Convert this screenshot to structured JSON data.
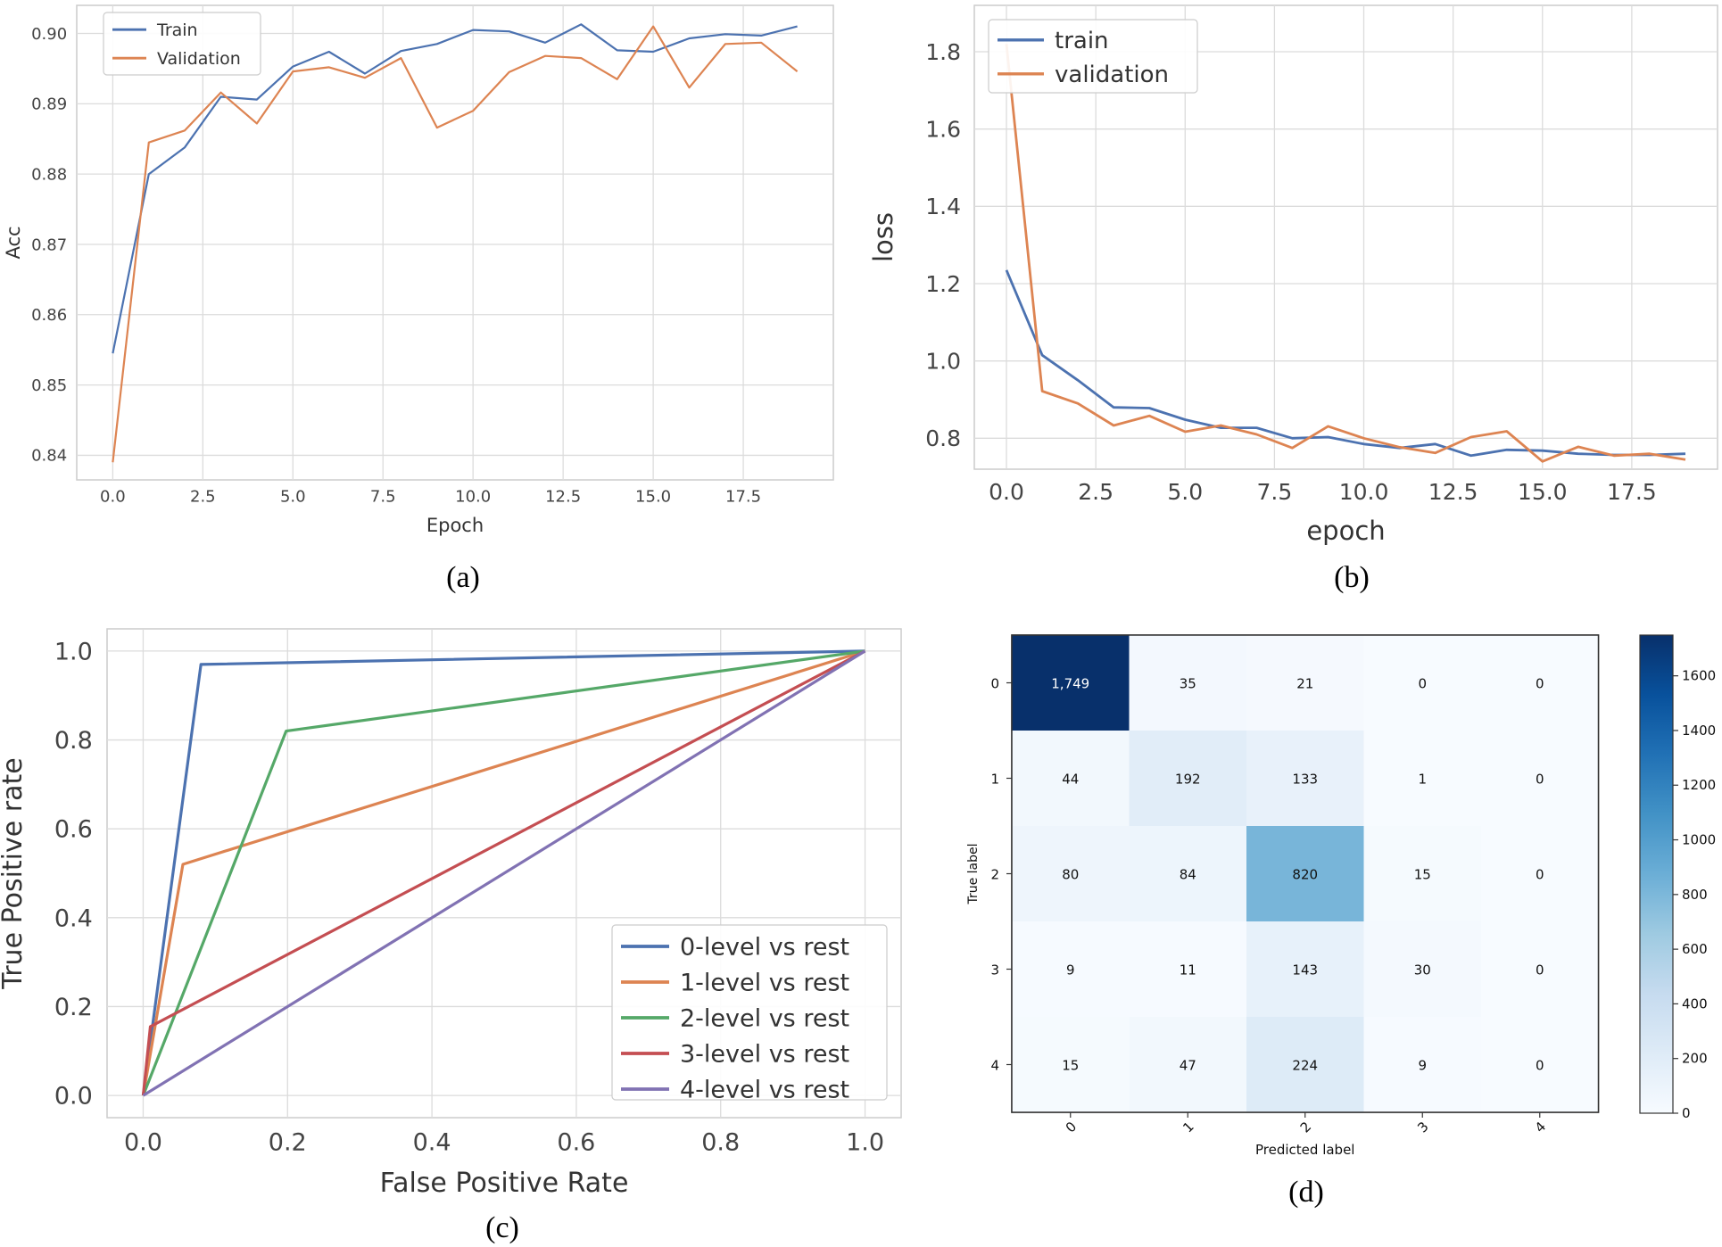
{
  "captions": {
    "a": "(a)",
    "b": "(b)",
    "c": "(c)",
    "d": "(d)"
  },
  "colors": {
    "blue": "#4c72b0",
    "orange": "#dd8452",
    "green": "#55a868",
    "red": "#c44e52",
    "purple": "#8172b3"
  },
  "chart_data": [
    {
      "id": "a",
      "type": "line",
      "xlabel": "Epoch",
      "ylabel": "Acc",
      "xlim": [
        -1,
        20
      ],
      "ylim": [
        0.8365,
        0.904
      ],
      "xticks": [
        0,
        2.5,
        5,
        7.5,
        10,
        12.5,
        15,
        17.5
      ],
      "xtick_labels": [
        "0.0",
        "2.5",
        "5.0",
        "7.5",
        "10.0",
        "12.5",
        "15.0",
        "17.5"
      ],
      "yticks": [
        0.84,
        0.85,
        0.86,
        0.87,
        0.88,
        0.89,
        0.9
      ],
      "ytick_labels": [
        "0.84",
        "0.85",
        "0.86",
        "0.87",
        "0.88",
        "0.89",
        "0.90"
      ],
      "grid": true,
      "legend": "top-left",
      "x": [
        0,
        1,
        2,
        3,
        4,
        5,
        6,
        7,
        8,
        9,
        10,
        11,
        12,
        13,
        14,
        15,
        16,
        17,
        18,
        19
      ],
      "series": [
        {
          "name": "Train",
          "color": "#4c72b0",
          "values": [
            0.8545,
            0.88,
            0.8838,
            0.891,
            0.8906,
            0.8953,
            0.8974,
            0.8943,
            0.8975,
            0.8985,
            0.9005,
            0.9003,
            0.8987,
            0.9013,
            0.8976,
            0.8974,
            0.8993,
            0.8999,
            0.8997,
            0.901
          ]
        },
        {
          "name": "Validation",
          "color": "#dd8452",
          "values": [
            0.839,
            0.8845,
            0.8862,
            0.8916,
            0.8872,
            0.8946,
            0.8952,
            0.8937,
            0.8965,
            0.8866,
            0.889,
            0.8945,
            0.8968,
            0.8965,
            0.8935,
            0.901,
            0.8923,
            0.8985,
            0.8987,
            0.8946
          ]
        }
      ]
    },
    {
      "id": "b",
      "type": "line",
      "xlabel": "epoch",
      "ylabel": "loss",
      "xlim": [
        -0.9,
        19.9
      ],
      "ylim": [
        0.72,
        1.92
      ],
      "xticks": [
        0,
        2.5,
        5,
        7.5,
        10,
        12.5,
        15,
        17.5
      ],
      "xtick_labels": [
        "0.0",
        "2.5",
        "5.0",
        "7.5",
        "10.0",
        "12.5",
        "15.0",
        "17.5"
      ],
      "yticks": [
        0.8,
        1.0,
        1.2,
        1.4,
        1.6,
        1.8
      ],
      "ytick_labels": [
        "0.8",
        "1.0",
        "1.2",
        "1.4",
        "1.6",
        "1.8"
      ],
      "grid": true,
      "legend": "top-left",
      "x": [
        0,
        1,
        2,
        3,
        4,
        5,
        6,
        7,
        8,
        9,
        10,
        11,
        12,
        13,
        14,
        15,
        16,
        17,
        18,
        19
      ],
      "series": [
        {
          "name": "train",
          "color": "#4c72b0",
          "values": [
            1.235,
            1.015,
            0.95,
            0.88,
            0.878,
            0.848,
            0.827,
            0.827,
            0.8,
            0.803,
            0.785,
            0.775,
            0.785,
            0.755,
            0.77,
            0.768,
            0.76,
            0.757,
            0.757,
            0.76
          ]
        },
        {
          "name": "validation",
          "color": "#dd8452",
          "values": [
            1.82,
            0.922,
            0.89,
            0.833,
            0.858,
            0.817,
            0.833,
            0.81,
            0.775,
            0.831,
            0.8,
            0.777,
            0.762,
            0.803,
            0.818,
            0.74,
            0.778,
            0.755,
            0.76,
            0.745
          ]
        }
      ]
    },
    {
      "id": "c",
      "type": "line",
      "xlabel": "False Positive Rate",
      "ylabel": "True Positive rate",
      "xlim": [
        -0.05,
        1.05
      ],
      "ylim": [
        -0.05,
        1.05
      ],
      "xticks": [
        0,
        0.2,
        0.4,
        0.6,
        0.8,
        1.0
      ],
      "xtick_labels": [
        "0.0",
        "0.2",
        "0.4",
        "0.6",
        "0.8",
        "1.0"
      ],
      "yticks": [
        0,
        0.2,
        0.4,
        0.6,
        0.8,
        1.0
      ],
      "ytick_labels": [
        "0.0",
        "0.2",
        "0.4",
        "0.6",
        "0.8",
        "1.0"
      ],
      "grid": true,
      "legend": "lower-right",
      "series": [
        {
          "name": "0-level vs rest",
          "color": "#4c72b0",
          "x": [
            0,
            0.08,
            1
          ],
          "y": [
            0,
            0.97,
            1
          ]
        },
        {
          "name": "1-level vs rest",
          "color": "#dd8452",
          "x": [
            0,
            0.055,
            1
          ],
          "y": [
            0,
            0.52,
            1
          ]
        },
        {
          "name": "2-level vs rest",
          "color": "#55a868",
          "x": [
            0,
            0.198,
            1
          ],
          "y": [
            0,
            0.82,
            1
          ]
        },
        {
          "name": "3-level vs rest",
          "color": "#c44e52",
          "x": [
            0,
            0.01,
            1
          ],
          "y": [
            0,
            0.155,
            1
          ]
        },
        {
          "name": "4-level vs rest",
          "color": "#8172b3",
          "x": [
            0,
            1
          ],
          "y": [
            0,
            1
          ]
        }
      ]
    },
    {
      "id": "d",
      "type": "heatmap",
      "xlabel": "Predicted label",
      "ylabel": "True label",
      "x_labels": [
        "0",
        "1",
        "2",
        "3",
        "4"
      ],
      "y_labels": [
        "0",
        "1",
        "2",
        "3",
        "4"
      ],
      "values": [
        [
          1749,
          35,
          21,
          0,
          0
        ],
        [
          44,
          192,
          133,
          1,
          0
        ],
        [
          80,
          84,
          820,
          15,
          0
        ],
        [
          9,
          11,
          143,
          30,
          0
        ],
        [
          15,
          47,
          224,
          9,
          0
        ]
      ],
      "cell_labels": [
        [
          "1,749",
          "35",
          "21",
          "0",
          "0"
        ],
        [
          "44",
          "192",
          "133",
          "1",
          "0"
        ],
        [
          "80",
          "84",
          "820",
          "15",
          "0"
        ],
        [
          "9",
          "11",
          "143",
          "30",
          "0"
        ],
        [
          "15",
          "47",
          "224",
          "9",
          "0"
        ]
      ],
      "colormap": "Blues",
      "colorbar_ticks": [
        0,
        200,
        400,
        600,
        800,
        1000,
        1200,
        1400,
        1600
      ],
      "colorbar_tick_labels": [
        "0",
        "200",
        "400",
        "600",
        "800",
        "1000",
        "1200",
        "1400",
        "1600"
      ],
      "vmin": 0,
      "vmax": 1749
    }
  ]
}
